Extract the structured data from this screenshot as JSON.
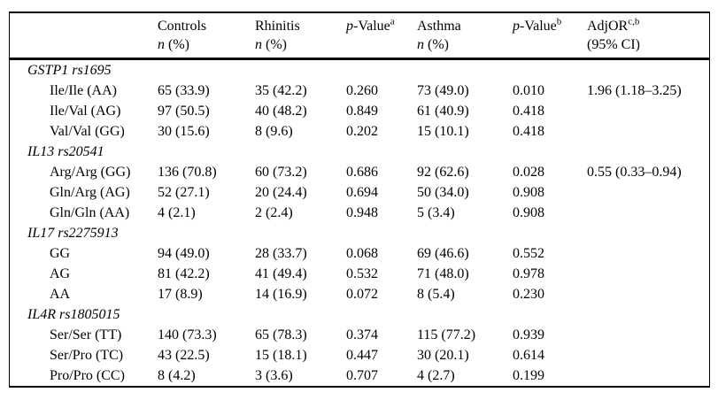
{
  "header": {
    "n_italic": "n",
    "n_suffix": " (%)",
    "controls_title": "Controls",
    "rhinitis_title": "Rhinitis",
    "asthma_title": "Asthma",
    "pvalue_p": "p",
    "pvalue_rest": "-Value",
    "pvalue_a_sup": "a",
    "pvalue_b_sup": "b",
    "adjor_title": "AdjOR",
    "adjor_sup": "c,b",
    "adjor_sub": "(95% CI)"
  },
  "sections": [
    {
      "gene": "GSTP1 rs1695",
      "rows": [
        {
          "label": "Ile/Ile (AA)",
          "controls": "65 (33.9)",
          "rhinitis": "35 (42.2)",
          "p1": "0.260",
          "asthma": "73 (49.0)",
          "p2": "0.010",
          "adjor": "1.96 (1.18–3.25)"
        },
        {
          "label": "Ile/Val (AG)",
          "controls": "97 (50.5)",
          "rhinitis": "40 (48.2)",
          "p1": "0.849",
          "asthma": "61 (40.9)",
          "p2": "0.418",
          "adjor": ""
        },
        {
          "label": "Val/Val (GG)",
          "controls": "30 (15.6)",
          "rhinitis": "8 (9.6)",
          "p1": "0.202",
          "asthma": "15 (10.1)",
          "p2": "0.418",
          "adjor": ""
        }
      ]
    },
    {
      "gene": "IL13 rs20541",
      "rows": [
        {
          "label": "Arg/Arg (GG)",
          "controls": "136 (70.8)",
          "rhinitis": "60 (73.2)",
          "p1": "0.686",
          "asthma": "92 (62.6)",
          "p2": "0.028",
          "adjor": "0.55 (0.33–0.94)"
        },
        {
          "label": "Gln/Arg (AG)",
          "controls": "52 (27.1)",
          "rhinitis": "20 (24.4)",
          "p1": "0.694",
          "asthma": "50 (34.0)",
          "p2": "0.908",
          "adjor": ""
        },
        {
          "label": "Gln/Gln (AA)",
          "controls": "4 (2.1)",
          "rhinitis": "2 (2.4)",
          "p1": "0.948",
          "asthma": "5 (3.4)",
          "p2": "0.908",
          "adjor": ""
        }
      ]
    },
    {
      "gene": "IL17 rs2275913",
      "rows": [
        {
          "label": "GG",
          "controls": "94 (49.0)",
          "rhinitis": "28 (33.7)",
          "p1": "0.068",
          "asthma": "69 (46.6)",
          "p2": "0.552",
          "adjor": ""
        },
        {
          "label": "AG",
          "controls": "81 (42.2)",
          "rhinitis": "41 (49.4)",
          "p1": "0.532",
          "asthma": "71 (48.0)",
          "p2": "0.978",
          "adjor": ""
        },
        {
          "label": "AA",
          "controls": "17 (8.9)",
          "rhinitis": "14 (16.9)",
          "p1": "0.072",
          "asthma": "8 (5.4)",
          "p2": "0.230",
          "adjor": ""
        }
      ]
    },
    {
      "gene": "IL4R rs1805015",
      "rows": [
        {
          "label": "Ser/Ser (TT)",
          "controls": "140 (73.3)",
          "rhinitis": "65 (78.3)",
          "p1": "0.374",
          "asthma": "115 (77.2)",
          "p2": "0.939",
          "adjor": ""
        },
        {
          "label": "Ser/Pro (TC)",
          "controls": "43 (22.5)",
          "rhinitis": "15 (18.1)",
          "p1": "0.447",
          "asthma": "30 (20.1)",
          "p2": "0.614",
          "adjor": ""
        },
        {
          "label": "Pro/Pro (CC)",
          "controls": "8 (4.2)",
          "rhinitis": "3 (3.6)",
          "p1": "0.707",
          "asthma": "4 (2.7)",
          "p2": "0.199",
          "adjor": ""
        }
      ]
    }
  ]
}
